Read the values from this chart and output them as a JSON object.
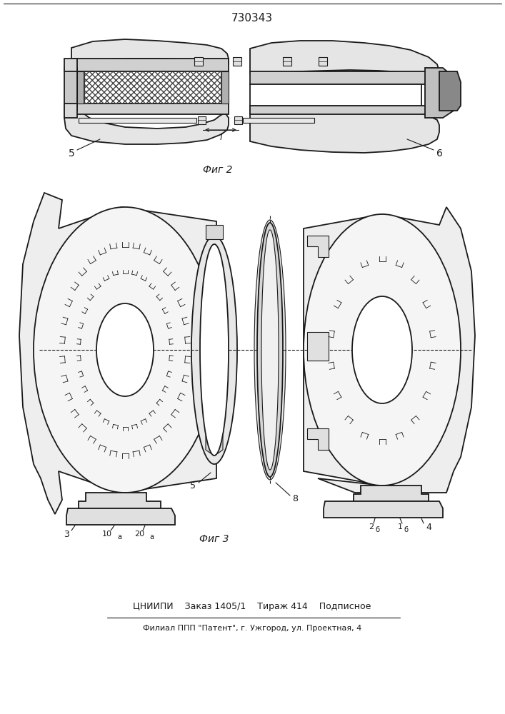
{
  "patent_number": "730343",
  "fig2_caption": "Фиг 2",
  "fig3_caption": "Фиг 3",
  "footer_line1": "ЦНИИПИ    Заказ 1405/1    Тираж 414    Подписное",
  "footer_line2": "Филиал ППП \"Патент\", г. Ужгород, ул. Проектная, 4",
  "lc": "#1a1a1a",
  "fig_width": 7.07,
  "fig_height": 10.0,
  "dpi": 100
}
